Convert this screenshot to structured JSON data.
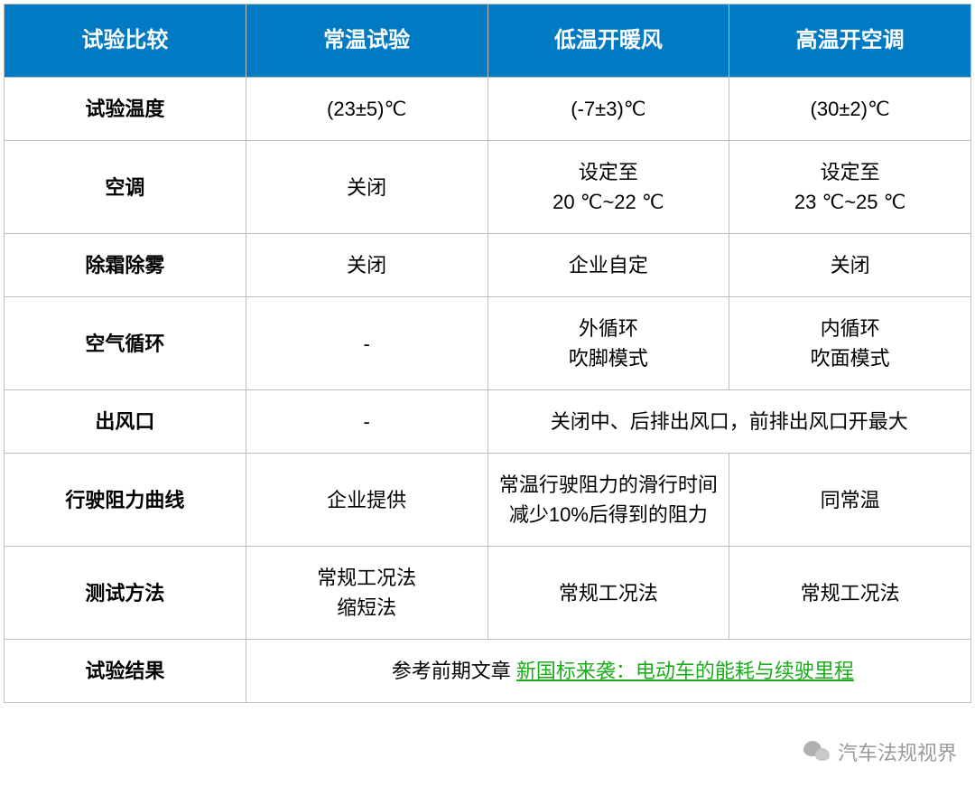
{
  "table": {
    "header_bg": "#007ac3",
    "header_color": "#ffffff",
    "border_color": "#bfbfbf",
    "link_color": "#1aad19",
    "columns": [
      "试验比较",
      "常温试验",
      "低温开暖风",
      "高温开空调"
    ],
    "rows": {
      "r1": {
        "label": "试验温度",
        "c1": "(23±5)℃",
        "c2": "(-7±3)℃",
        "c3": "(30±2)℃"
      },
      "r2": {
        "label": "空调",
        "c1": "关闭",
        "c2": "设定至\n20 ℃~22 ℃",
        "c3": "设定至\n23 ℃~25 ℃"
      },
      "r3": {
        "label": "除霜除雾",
        "c1": "关闭",
        "c2": "企业自定",
        "c3": "关闭"
      },
      "r4": {
        "label": "空气循环",
        "c1": "-",
        "c2": "外循环\n吹脚模式",
        "c3": "内循环\n吹面模式"
      },
      "r5": {
        "label": "出风口",
        "c1": "-",
        "span23": "关闭中、后排出风口，前排出风口开最大"
      },
      "r6": {
        "label": "行驶阻力曲线",
        "c1": "企业提供",
        "c2": "常温行驶阻力的滑行时间减少10%后得到的阻力",
        "c3": "同常温"
      },
      "r7": {
        "label": "测试方法",
        "c1": "常规工况法\n缩短法",
        "c2": "常规工况法",
        "c3": "常规工况法"
      },
      "r8": {
        "label": "试验结果",
        "prefix": "参考前期文章 ",
        "link": "新国标来袭：电动车的能耗与续驶里程"
      }
    }
  },
  "watermark": {
    "text": "汽车法规视界"
  }
}
